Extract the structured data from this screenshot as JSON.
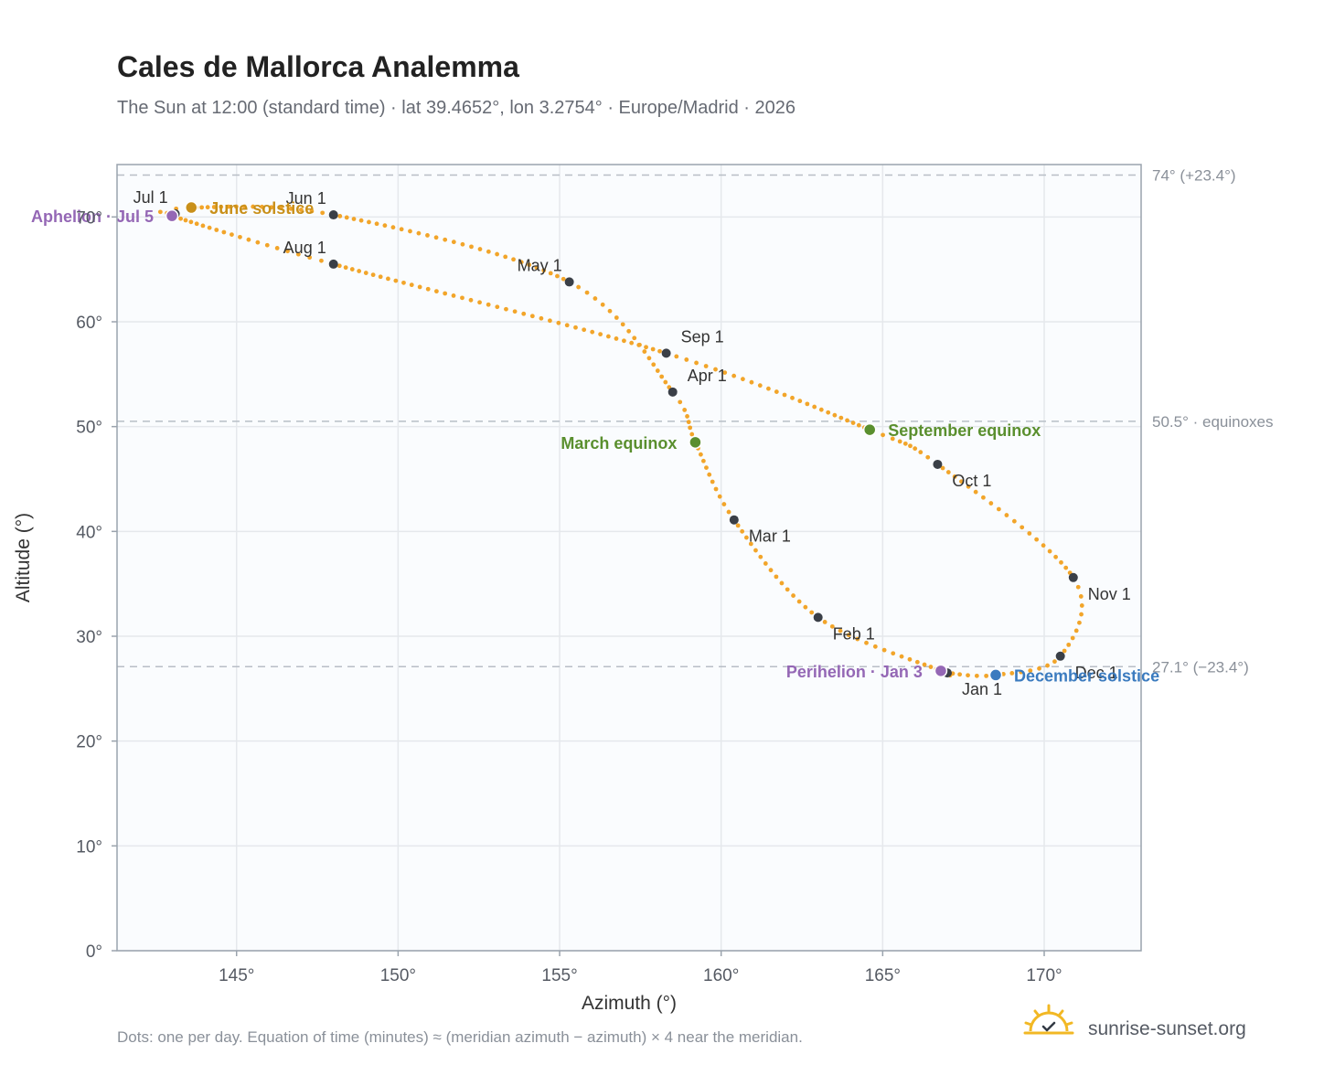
{
  "header": {
    "title": "Cales de Mallorca Analemma",
    "subtitle": "The Sun at 12:00 (standard time) · lat 39.4652°, lon 3.2754° · Europe/Madrid · 2026"
  },
  "footer": {
    "note": "Dots: one per day. Equation of time (minutes) ≈ (meridian azimuth − azimuth) × 4 near the meridian.",
    "brand": "sunrise-sunset.org",
    "brand_icon": "sun-logo-icon"
  },
  "colors": {
    "curve": "#f2a52a",
    "month_dot": "#3a3f47",
    "june_solstice": "#c9901a",
    "december_solstice": "#3b7bbf",
    "equinox": "#5a8f2e",
    "apsis": "#9467b5",
    "grid": "#e5e8ec",
    "plot_bg": "#fafcfe",
    "frame": "#9aa3ad"
  },
  "chart_data": {
    "type": "scatter",
    "xlabel": "Azimuth (°)",
    "ylabel": "Altitude (°)",
    "xlim": [
      141.3,
      173.0
    ],
    "ylim": [
      0,
      75
    ],
    "x_ticks": [
      145,
      150,
      155,
      160,
      165,
      170
    ],
    "x_tick_labels": [
      "145°",
      "150°",
      "155°",
      "160°",
      "165°",
      "170°"
    ],
    "y_ticks": [
      0,
      10,
      20,
      30,
      40,
      50,
      60,
      70
    ],
    "y_tick_labels": [
      "0°",
      "10°",
      "20°",
      "30°",
      "40°",
      "50°",
      "60°",
      "70°"
    ],
    "grid": true,
    "reference_lines": [
      {
        "y": 74.0,
        "label": "74° (+23.4°)"
      },
      {
        "y": 50.5,
        "label": "50.5° · equinoxes"
      },
      {
        "y": 27.1,
        "label": "27.1° (−23.4°)"
      }
    ],
    "series": [
      {
        "anchors": [
          {
            "date": "Jan 1",
            "az": 167.0,
            "alt": 26.5
          },
          {
            "date": "Jan 3",
            "az": 166.8,
            "alt": 26.7
          },
          {
            "date": "Feb 1",
            "az": 163.0,
            "alt": 31.8
          },
          {
            "date": "Mar 1",
            "az": 160.4,
            "alt": 41.1
          },
          {
            "date": "Mar 20",
            "az": 159.2,
            "alt": 48.5
          },
          {
            "date": "Apr 1",
            "az": 158.5,
            "alt": 53.3
          },
          {
            "date": "May 1",
            "az": 155.3,
            "alt": 63.8
          },
          {
            "date": "Jun 1",
            "az": 148.0,
            "alt": 70.2
          },
          {
            "date": "Jun 21",
            "az": 143.6,
            "alt": 70.9
          },
          {
            "date": "Jul 1",
            "az": 143.1,
            "alt": 70.3
          },
          {
            "date": "Jul 5",
            "az": 143.0,
            "alt": 70.1
          },
          {
            "date": "Aug 1",
            "az": 148.0,
            "alt": 65.5
          },
          {
            "date": "Sep 1",
            "az": 158.3,
            "alt": 57.0
          },
          {
            "date": "Sep 23",
            "az": 164.6,
            "alt": 49.7
          },
          {
            "date": "Oct 1",
            "az": 166.7,
            "alt": 46.4
          },
          {
            "date": "Nov 1",
            "az": 170.9,
            "alt": 35.6
          },
          {
            "date": "Dec 1",
            "az": 170.5,
            "alt": 28.1
          },
          {
            "date": "Dec 21",
            "az": 168.5,
            "alt": 26.3
          },
          {
            "date": "Jan 1",
            "az": 167.0,
            "alt": 26.5
          }
        ]
      }
    ],
    "month_markers": [
      {
        "label": "Jan 1",
        "az": 167.0,
        "alt": 26.5,
        "label_pos": "below"
      },
      {
        "label": "Feb 1",
        "az": 163.0,
        "alt": 31.8,
        "label_pos": "below-right"
      },
      {
        "label": "Mar 1",
        "az": 160.4,
        "alt": 41.1,
        "label_pos": "below-right"
      },
      {
        "label": "Apr 1",
        "az": 158.5,
        "alt": 53.3,
        "label_pos": "above-right"
      },
      {
        "label": "May 1",
        "az": 155.3,
        "alt": 63.8,
        "label_pos": "above-left"
      },
      {
        "label": "Jun 1",
        "az": 148.0,
        "alt": 70.2,
        "label_pos": "above-left"
      },
      {
        "label": "Jul 1",
        "az": 143.1,
        "alt": 70.3,
        "label_pos": "above-left"
      },
      {
        "label": "Aug 1",
        "az": 148.0,
        "alt": 65.5,
        "label_pos": "above-left"
      },
      {
        "label": "Sep 1",
        "az": 158.3,
        "alt": 57.0,
        "label_pos": "above-right"
      },
      {
        "label": "Oct 1",
        "az": 166.7,
        "alt": 46.4,
        "label_pos": "below-right"
      },
      {
        "label": "Nov 1",
        "az": 170.9,
        "alt": 35.6,
        "label_pos": "below-right"
      },
      {
        "label": "Dec 1",
        "az": 170.5,
        "alt": 28.1,
        "label_pos": "below-right"
      }
    ],
    "events": [
      {
        "label": "June solstice",
        "az": 143.6,
        "alt": 70.9,
        "color_key": "june_solstice",
        "label_pos": "right"
      },
      {
        "label": "December solstice",
        "az": 168.5,
        "alt": 26.3,
        "color_key": "december_solstice",
        "label_pos": "right"
      },
      {
        "label": "March equinox",
        "az": 159.2,
        "alt": 48.5,
        "color_key": "equinox",
        "label_pos": "left"
      },
      {
        "label": "September equinox",
        "az": 164.6,
        "alt": 49.7,
        "color_key": "equinox",
        "label_pos": "right"
      },
      {
        "label": "Aphelion · Jul 5",
        "az": 143.0,
        "alt": 70.1,
        "color_key": "apsis",
        "label_pos": "left"
      },
      {
        "label": "Perihelion · Jan 3",
        "az": 166.8,
        "alt": 26.7,
        "color_key": "apsis",
        "label_pos": "left"
      }
    ]
  }
}
